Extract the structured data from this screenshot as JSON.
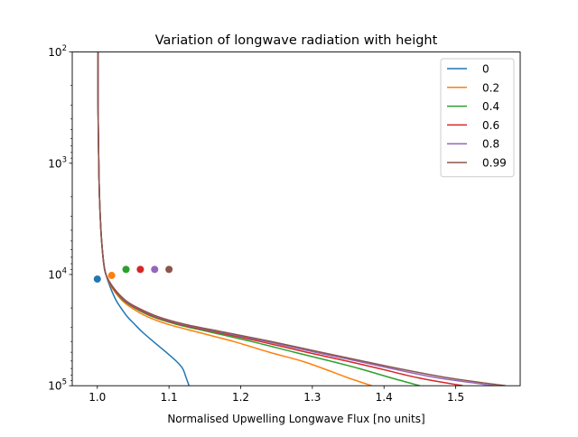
{
  "chart_data": {
    "type": "line",
    "title": "Variation of longwave radiation with height",
    "xlabel": "Normalised Upwelling Longwave Flux [no units]",
    "ylabel": "",
    "xlim": [
      0.965,
      1.59
    ],
    "ylim": [
      100000,
      100
    ],
    "yscale": "log",
    "yaxis_inverted": true,
    "grid": false,
    "legend_position": "upper right",
    "x_ticks": [
      1.0,
      1.1,
      1.2,
      1.3,
      1.4,
      1.5
    ],
    "x_tick_labels": [
      "1.0",
      "1.1",
      "1.2",
      "1.3",
      "1.4",
      "1.5"
    ],
    "y_ticks": [
      {
        "value": 100,
        "base": "10",
        "exp": "2"
      },
      {
        "value": 1000,
        "base": "10",
        "exp": "3"
      },
      {
        "value": 10000,
        "base": "10",
        "exp": "4"
      },
      {
        "value": 100000,
        "base": "10",
        "exp": "5"
      }
    ],
    "y_profile": [
      100,
      300,
      1000,
      2000,
      4000,
      6000,
      8000,
      10000,
      13000,
      17000,
      20000,
      24000,
      28000,
      33000,
      40000,
      50000,
      60000,
      70000,
      85000,
      100000
    ],
    "series": [
      {
        "name": "0",
        "color": "#1f77b4",
        "x": [
          1.001,
          1.001,
          1.002,
          1.003,
          1.005,
          1.007,
          1.009,
          1.012,
          1.018,
          1.026,
          1.033,
          1.042,
          1.052,
          1.063,
          1.078,
          1.096,
          1.11,
          1.119,
          1.124,
          1.128
        ],
        "marker": {
          "x": 1.0,
          "y": 11000
        }
      },
      {
        "name": "0.2",
        "color": "#ff7f0e",
        "x": [
          1.001,
          1.001,
          1.002,
          1.003,
          1.005,
          1.007,
          1.009,
          1.012,
          1.02,
          1.034,
          1.048,
          1.07,
          1.098,
          1.14,
          1.19,
          1.24,
          1.285,
          1.315,
          1.35,
          1.383
        ],
        "marker": {
          "x": 1.02,
          "y": 10200
        }
      },
      {
        "name": "0.4",
        "color": "#2ca02c",
        "x": [
          1.001,
          1.001,
          1.002,
          1.003,
          1.005,
          1.007,
          1.009,
          1.012,
          1.021,
          1.036,
          1.052,
          1.077,
          1.11,
          1.158,
          1.215,
          1.275,
          1.325,
          1.365,
          1.41,
          1.45
        ],
        "marker": {
          "x": 1.04,
          "y": 9000
        }
      },
      {
        "name": "0.6",
        "color": "#d62728",
        "x": [
          1.001,
          1.001,
          1.002,
          1.003,
          1.005,
          1.007,
          1.009,
          1.012,
          1.021,
          1.037,
          1.054,
          1.08,
          1.115,
          1.166,
          1.227,
          1.292,
          1.348,
          1.393,
          1.448,
          1.51
        ],
        "marker": {
          "x": 1.06,
          "y": 9000
        }
      },
      {
        "name": "0.8",
        "color": "#9467bd",
        "x": [
          1.001,
          1.001,
          1.002,
          1.003,
          1.005,
          1.007,
          1.009,
          1.012,
          1.022,
          1.038,
          1.056,
          1.083,
          1.119,
          1.172,
          1.236,
          1.304,
          1.362,
          1.41,
          1.475,
          1.555
        ],
        "marker": {
          "x": 1.08,
          "y": 9000
        }
      },
      {
        "name": "0.99",
        "color": "#8c564b",
        "x": [
          1.001,
          1.001,
          1.002,
          1.003,
          1.005,
          1.007,
          1.009,
          1.012,
          1.022,
          1.039,
          1.057,
          1.085,
          1.122,
          1.177,
          1.242,
          1.312,
          1.37,
          1.42,
          1.49,
          1.57
        ],
        "marker": {
          "x": 1.1,
          "y": 9000
        }
      }
    ]
  }
}
